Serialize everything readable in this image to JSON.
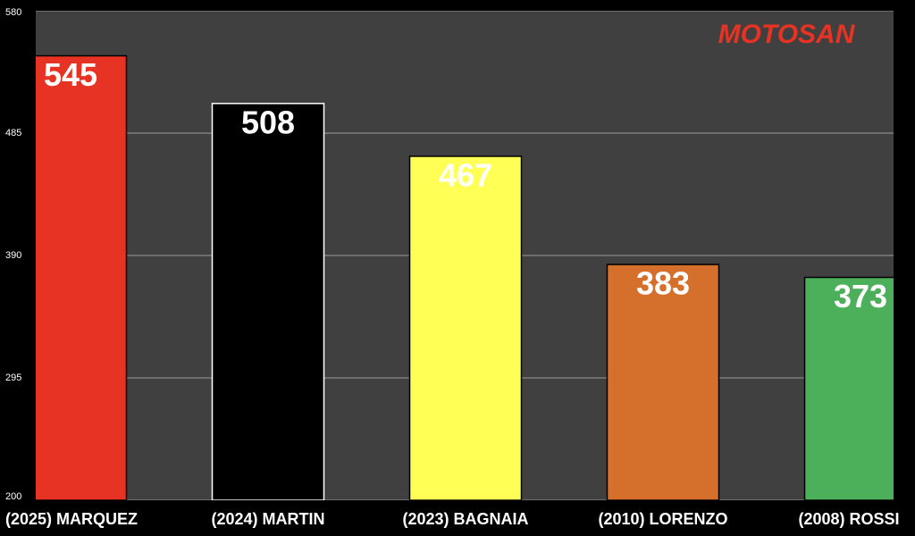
{
  "chart_data": {
    "type": "bar",
    "watermark": "MOTOSAN",
    "categories": [
      "(2025) MARQUEZ",
      "(2024) MARTIN",
      "(2023) BAGNAIA",
      "(2010) LORENZO",
      "(2008) ROSSI"
    ],
    "values": [
      545,
      508,
      467,
      383,
      373
    ],
    "colors": [
      "#e63323",
      "#000000",
      "#ffff55",
      "#d4702c",
      "#4caf5a"
    ],
    "ylim": [
      200,
      580
    ],
    "yticks": [
      200,
      295,
      390,
      485,
      580
    ],
    "grid": true
  }
}
